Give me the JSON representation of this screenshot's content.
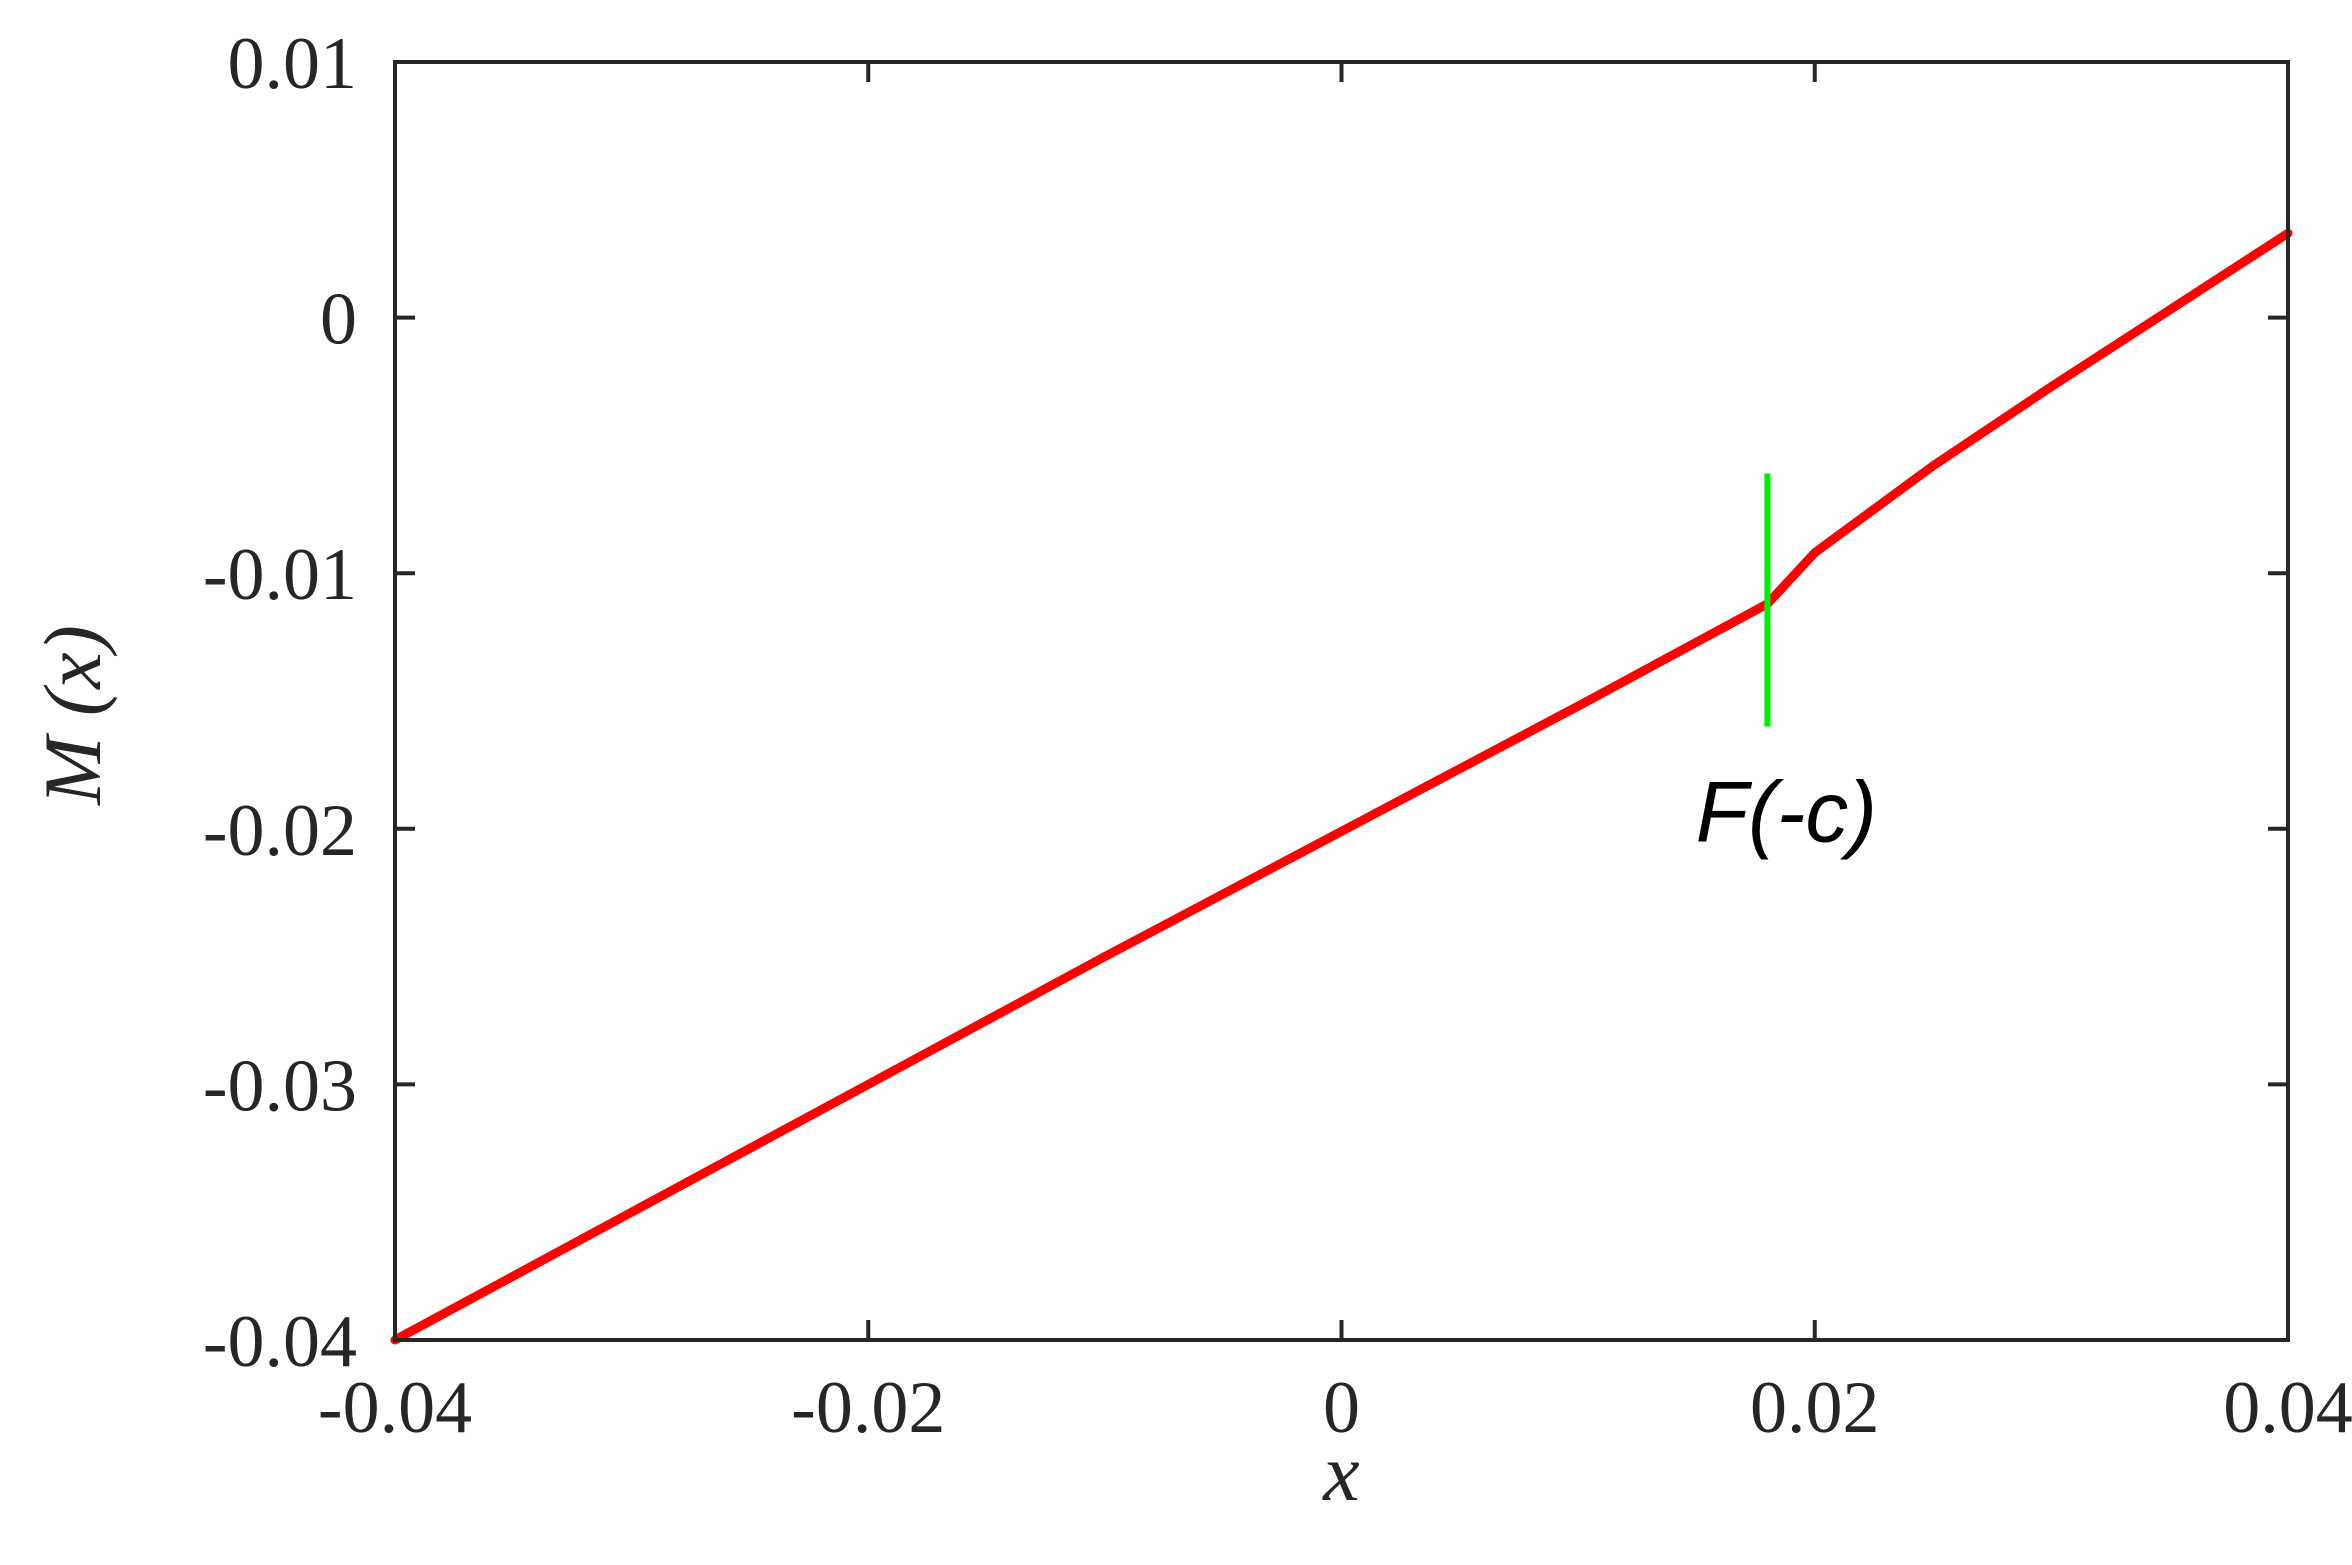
{
  "chart_data": {
    "type": "line",
    "title": "",
    "xlabel": "x",
    "ylabel": "M (x)",
    "xlim": [
      -0.04,
      0.04
    ],
    "ylim": [
      -0.04,
      0.01
    ],
    "xticks": [
      -0.04,
      -0.02,
      0,
      0.02,
      0.04
    ],
    "xtick_labels": [
      "-0.04",
      "-0.02",
      "0",
      "0.02",
      "0.04"
    ],
    "yticks": [
      -0.04,
      -0.03,
      -0.02,
      -0.01,
      0,
      0.01
    ],
    "ytick_labels": [
      "-0.04",
      "-0.03",
      "-0.02",
      "-0.01",
      "0",
      "0.01"
    ],
    "grid": false,
    "series": [
      {
        "color": "#ff0000",
        "x": [
          -0.04,
          -0.03,
          -0.02,
          -0.01,
          0,
          0.01,
          0.018,
          0.02,
          0.025,
          0.03,
          0.035,
          0.04
        ],
        "y": [
          -0.04,
          -0.035,
          -0.03,
          -0.025,
          -0.0201,
          -0.0152,
          -0.0112,
          -0.0092,
          -0.0058,
          -0.0027,
          0.0003,
          0.0033
        ]
      }
    ],
    "annotations": [
      {
        "type": "vline",
        "x": 0.018,
        "y_range": [
          -0.016,
          -0.0061
        ],
        "color": "#00ee00"
      },
      {
        "type": "text",
        "text": "F(-c)",
        "x": 0.0188,
        "y": -0.0205
      }
    ]
  }
}
